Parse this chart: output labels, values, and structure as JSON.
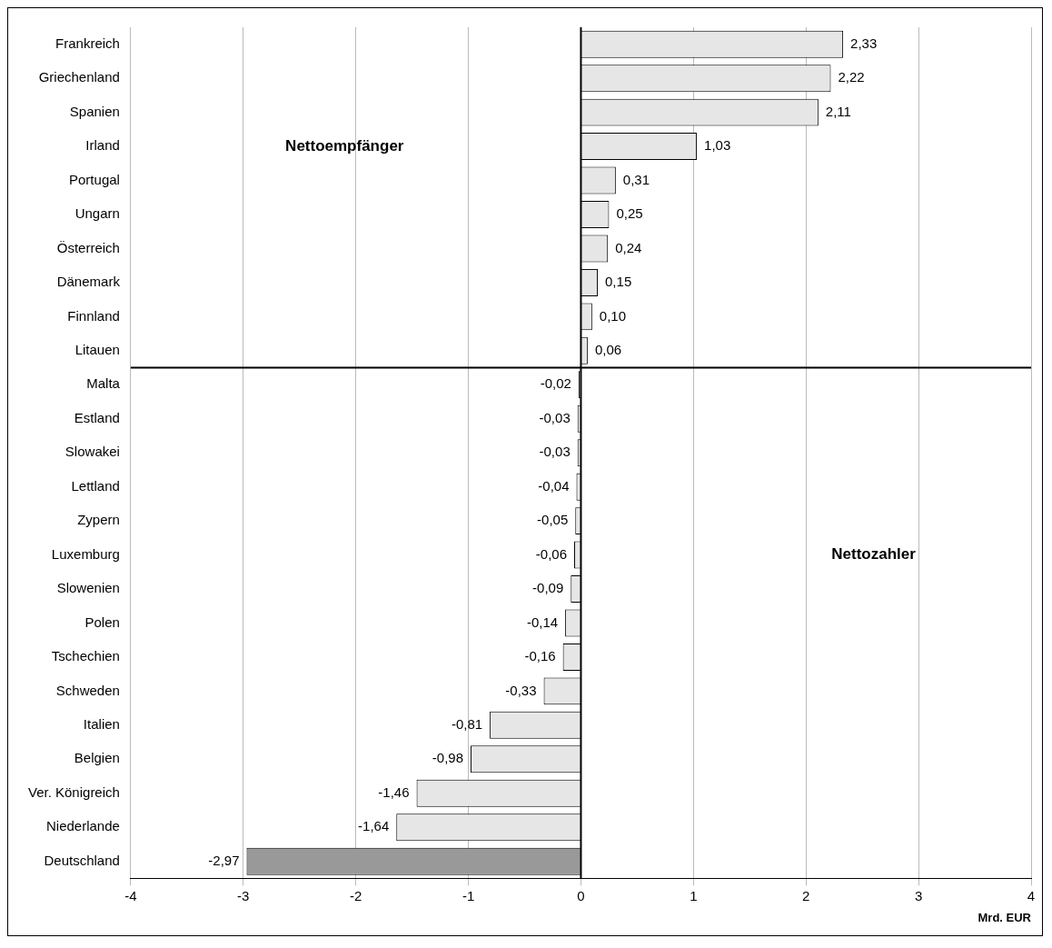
{
  "chart_data": {
    "type": "bar",
    "orientation": "horizontal",
    "categories": [
      "Frankreich",
      "Griechenland",
      "Spanien",
      "Irland",
      "Portugal",
      "Ungarn",
      "Österreich",
      "Dänemark",
      "Finnland",
      "Litauen",
      "Malta",
      "Estland",
      "Slowakei",
      "Lettland",
      "Zypern",
      "Luxemburg",
      "Slowenien",
      "Polen",
      "Tschechien",
      "Schweden",
      "Italien",
      "Belgien",
      "Ver. Königreich",
      "Niederlande",
      "Deutschland"
    ],
    "values": [
      2.33,
      2.22,
      2.11,
      1.03,
      0.31,
      0.25,
      0.24,
      0.15,
      0.1,
      0.06,
      -0.02,
      -0.03,
      -0.03,
      -0.04,
      -0.05,
      -0.06,
      -0.09,
      -0.14,
      -0.16,
      -0.33,
      -0.81,
      -0.98,
      -1.46,
      -1.64,
      -2.97
    ],
    "value_labels": [
      "2,33",
      "2,22",
      "2,11",
      "1,03",
      "0,31",
      "0,25",
      "0,24",
      "0,15",
      "0,10",
      "0,06",
      "-0,02",
      "-0,03",
      "-0,03",
      "-0,04",
      "-0,05",
      "-0,06",
      "-0,09",
      "-0,14",
      "-0,16",
      "-0,33",
      "-0,81",
      "-0,98",
      "-1,46",
      "-1,64",
      "-2,97"
    ],
    "colors": [
      "#e6e6e6",
      "#e6e6e6",
      "#e6e6e6",
      "#e6e6e6",
      "#e6e6e6",
      "#e6e6e6",
      "#e6e6e6",
      "#e6e6e6",
      "#e6e6e6",
      "#e6e6e6",
      "#e6e6e6",
      "#e6e6e6",
      "#e6e6e6",
      "#e6e6e6",
      "#e6e6e6",
      "#e6e6e6",
      "#e6e6e6",
      "#e6e6e6",
      "#e6e6e6",
      "#e6e6e6",
      "#e6e6e6",
      "#e6e6e6",
      "#e6e6e6",
      "#e6e6e6",
      "#999999"
    ],
    "xlim": [
      -4,
      4
    ],
    "xticks": [
      -4,
      -3,
      -2,
      -1,
      0,
      1,
      2,
      3,
      4
    ],
    "xlabel": "Mrd. EUR",
    "grid": "x",
    "legend": false,
    "annotations": [
      "Nettoempfänger",
      "Nettozahler"
    ]
  }
}
